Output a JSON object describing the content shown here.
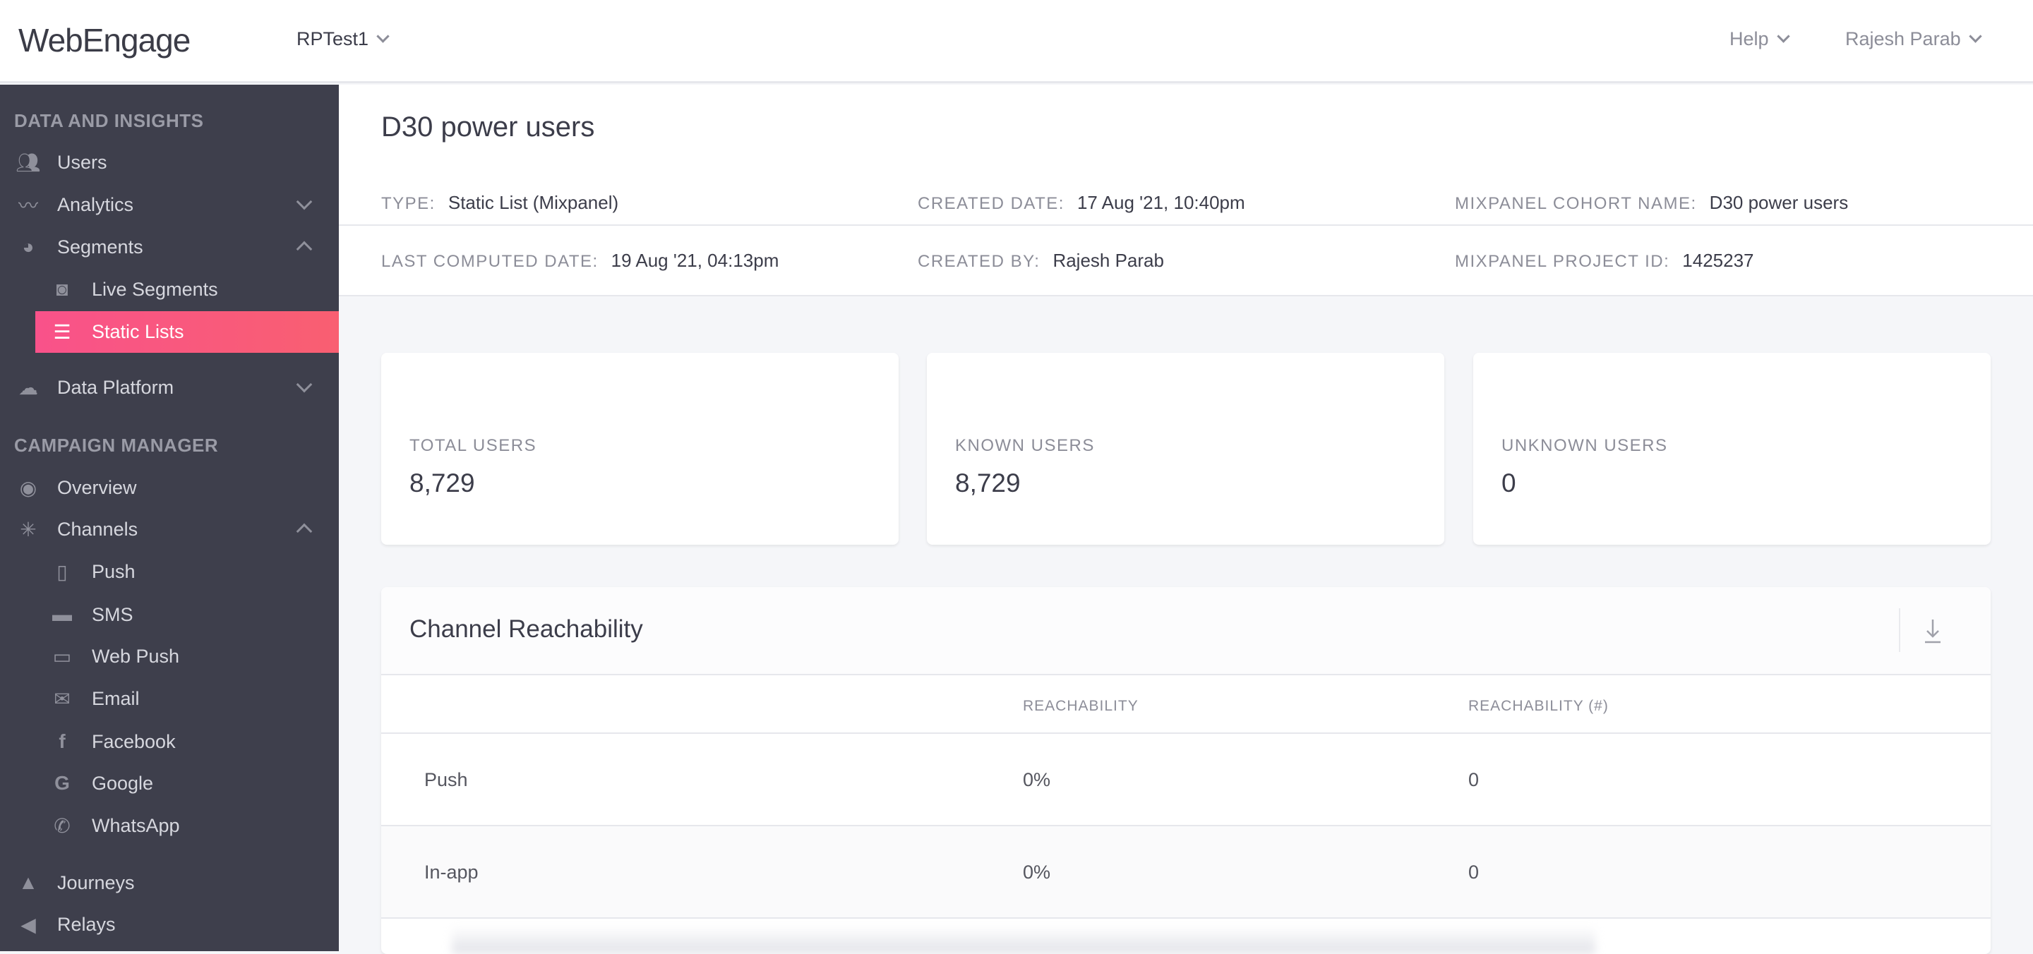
{
  "header": {
    "logo": "WebEngage",
    "project": "RPTest1",
    "help": "Help",
    "user": "Rajesh Parab"
  },
  "sidebar": {
    "section1": "DATA AND INSIGHTS",
    "section2": "CAMPAIGN MANAGER",
    "items": [
      {
        "label": "Users",
        "icon": "users-icon"
      },
      {
        "label": "Analytics",
        "icon": "analytics-icon"
      },
      {
        "label": "Segments",
        "icon": "pie-chart-icon"
      },
      {
        "label": "Live Segments",
        "icon": "live-segment-icon"
      },
      {
        "label": "Static Lists",
        "icon": "list-icon"
      },
      {
        "label": "Data Platform",
        "icon": "cloud-icon"
      },
      {
        "label": "Overview",
        "icon": "eye-icon"
      },
      {
        "label": "Channels",
        "icon": "channels-icon"
      },
      {
        "label": "Push",
        "icon": "mobile-icon"
      },
      {
        "label": "SMS",
        "icon": "sms-icon"
      },
      {
        "label": "Web Push",
        "icon": "browser-icon"
      },
      {
        "label": "Email",
        "icon": "email-icon"
      },
      {
        "label": "Facebook",
        "icon": "facebook-icon"
      },
      {
        "label": "Google",
        "icon": "google-icon"
      },
      {
        "label": "WhatsApp",
        "icon": "whatsapp-icon"
      },
      {
        "label": "Journeys",
        "icon": "rocket-icon"
      },
      {
        "label": "Relays",
        "icon": "megaphone-icon"
      }
    ],
    "active_color": "#f9528a"
  },
  "details": {
    "title": "D30 power users",
    "type_k": "TYPE:",
    "type_v": "Static List (Mixpanel)",
    "created_k": "CREATED DATE:",
    "created_v": "17 Aug '21, 10:40pm",
    "cohort_k": "MIXPANEL COHORT NAME:",
    "cohort_v": "D30 power users",
    "computed_k": "LAST COMPUTED DATE:",
    "computed_v": "19 Aug '21, 04:13pm",
    "by_k": "CREATED BY:",
    "by_v": "Rajesh Parab",
    "project_k": "MIXPANEL PROJECT ID:",
    "project_v": "1425237"
  },
  "cards": [
    {
      "label": "TOTAL USERS",
      "value": "8,729"
    },
    {
      "label": "KNOWN USERS",
      "value": "8,729"
    },
    {
      "label": "UNKNOWN USERS",
      "value": "0"
    }
  ],
  "reachability": {
    "title": "Channel Reachability",
    "columns": [
      "",
      "REACHABILITY",
      "REACHABILITY (#)"
    ],
    "rows": [
      [
        "Push",
        "0%",
        "0"
      ],
      [
        "In-app",
        "0%",
        "0"
      ]
    ]
  }
}
